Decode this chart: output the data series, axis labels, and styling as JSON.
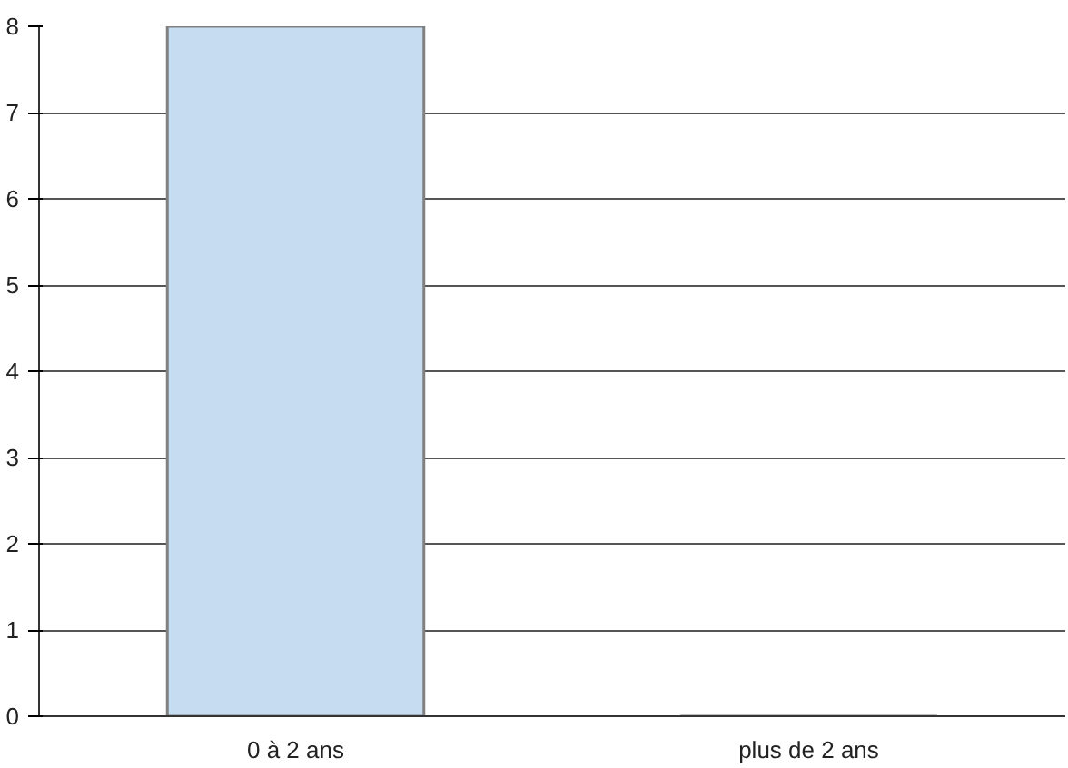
{
  "chart_data": {
    "type": "bar",
    "categories": [
      "0 à 2 ans",
      "plus de 2 ans"
    ],
    "values": [
      8,
      0
    ],
    "color": "#c6dcf0",
    "ylim": [
      0,
      8
    ],
    "yticks": [
      0,
      1,
      2,
      3,
      4,
      5,
      6,
      7,
      8
    ],
    "grid": "y"
  }
}
